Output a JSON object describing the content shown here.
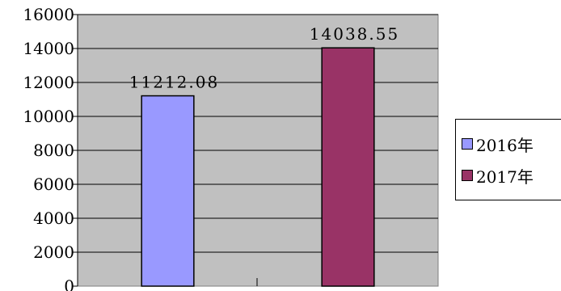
{
  "chart_data": {
    "type": "bar",
    "categories": [
      "2016年",
      "2017年"
    ],
    "values": [
      11212.08,
      14038.55
    ],
    "value_labels": [
      "11212.08",
      "14038.55"
    ],
    "colors": [
      "#9999ff",
      "#993366"
    ],
    "ylim": [
      0,
      16000
    ],
    "yticks": [
      0,
      2000,
      4000,
      6000,
      8000,
      10000,
      12000,
      14000,
      16000
    ],
    "grid": true,
    "legend_position": "right",
    "legend": [
      "2016年",
      "2017年"
    ],
    "plot_background": "#c0c0c0"
  }
}
